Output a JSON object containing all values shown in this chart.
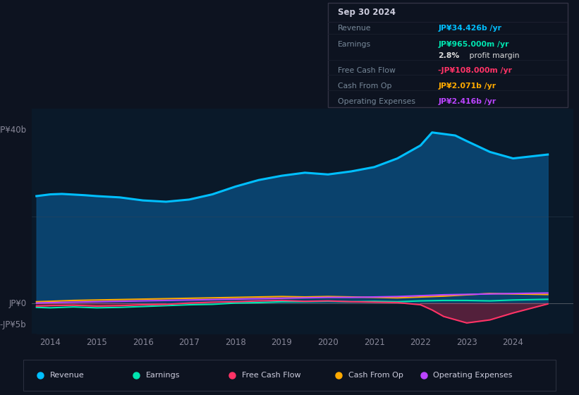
{
  "bg_color": "#0d1320",
  "plot_bg_color": "#0a1929",
  "title": "Sep 30 2024",
  "y_label_top": "JP¥40b",
  "y_label_zero": "JP¥0",
  "y_label_neg": "-JP¥5b",
  "x_ticks": [
    2014,
    2015,
    2016,
    2017,
    2018,
    2019,
    2020,
    2021,
    2022,
    2023,
    2024
  ],
  "ylim": [
    -7.0,
    45.0
  ],
  "xlim": [
    2013.6,
    2025.3
  ],
  "revenue_x": [
    2013.7,
    2014.0,
    2014.25,
    2014.75,
    2015.0,
    2015.5,
    2016.0,
    2016.5,
    2017.0,
    2017.5,
    2018.0,
    2018.5,
    2019.0,
    2019.5,
    2020.0,
    2020.5,
    2021.0,
    2021.5,
    2022.0,
    2022.25,
    2022.75,
    2023.0,
    2023.5,
    2024.0,
    2024.75
  ],
  "revenue_y": [
    24.8,
    25.2,
    25.3,
    25.0,
    24.8,
    24.5,
    23.8,
    23.5,
    24.0,
    25.2,
    27.0,
    28.5,
    29.5,
    30.2,
    29.8,
    30.5,
    31.5,
    33.5,
    36.5,
    39.5,
    38.8,
    37.5,
    35.0,
    33.5,
    34.4
  ],
  "earnings_x": [
    2013.7,
    2014.0,
    2014.5,
    2015.0,
    2015.5,
    2016.0,
    2016.5,
    2017.0,
    2017.5,
    2018.0,
    2018.5,
    2019.0,
    2019.5,
    2020.0,
    2020.5,
    2021.0,
    2021.5,
    2022.0,
    2022.5,
    2023.0,
    2023.5,
    2024.0,
    2024.75
  ],
  "earnings_y": [
    -0.9,
    -1.0,
    -0.8,
    -1.0,
    -0.9,
    -0.7,
    -0.5,
    -0.3,
    -0.2,
    0.1,
    0.2,
    0.4,
    0.4,
    0.5,
    0.4,
    0.5,
    0.4,
    0.6,
    0.7,
    0.7,
    0.6,
    0.8,
    0.965
  ],
  "fcf_x": [
    2013.7,
    2014.0,
    2014.5,
    2015.0,
    2015.5,
    2016.0,
    2016.5,
    2017.0,
    2017.5,
    2018.0,
    2018.5,
    2019.0,
    2019.5,
    2020.0,
    2020.5,
    2021.0,
    2021.5,
    2022.0,
    2022.25,
    2022.5,
    2023.0,
    2023.5,
    2024.0,
    2024.75
  ],
  "fcf_y": [
    -0.6,
    -0.5,
    -0.4,
    -0.6,
    -0.5,
    -0.3,
    -0.2,
    0.1,
    0.3,
    0.4,
    0.6,
    0.7,
    0.5,
    0.6,
    0.4,
    0.3,
    0.2,
    -0.3,
    -1.5,
    -3.0,
    -4.5,
    -3.8,
    -2.2,
    -0.108
  ],
  "cashop_x": [
    2013.7,
    2014.0,
    2014.5,
    2015.0,
    2015.5,
    2016.0,
    2016.5,
    2017.0,
    2017.5,
    2018.0,
    2018.5,
    2019.0,
    2019.5,
    2020.0,
    2020.5,
    2021.0,
    2021.5,
    2022.0,
    2022.5,
    2023.0,
    2023.5,
    2024.0,
    2024.75
  ],
  "cashop_y": [
    0.4,
    0.5,
    0.7,
    0.8,
    0.9,
    1.0,
    1.1,
    1.2,
    1.3,
    1.4,
    1.5,
    1.6,
    1.5,
    1.6,
    1.5,
    1.4,
    1.3,
    1.5,
    1.7,
    2.0,
    2.3,
    2.2,
    2.071
  ],
  "opex_x": [
    2013.7,
    2014.0,
    2014.5,
    2015.0,
    2015.5,
    2016.0,
    2016.5,
    2017.0,
    2017.5,
    2018.0,
    2018.5,
    2019.0,
    2019.5,
    2020.0,
    2020.5,
    2021.0,
    2021.5,
    2022.0,
    2022.5,
    2023.0,
    2023.5,
    2024.0,
    2024.75
  ],
  "opex_y": [
    0.1,
    0.2,
    0.3,
    0.4,
    0.5,
    0.6,
    0.7,
    0.8,
    0.9,
    1.0,
    1.1,
    1.2,
    1.3,
    1.4,
    1.4,
    1.5,
    1.6,
    1.8,
    2.0,
    2.1,
    2.2,
    2.3,
    2.416
  ],
  "revenue_color": "#00bfff",
  "earnings_color": "#00e5b0",
  "fcf_color": "#ff3366",
  "cashop_color": "#ffaa00",
  "opex_color": "#bb44ff",
  "legend": [
    {
      "label": "Revenue",
      "color": "#00bfff"
    },
    {
      "label": "Earnings",
      "color": "#00e5b0"
    },
    {
      "label": "Free Cash Flow",
      "color": "#ff3366"
    },
    {
      "label": "Cash From Op",
      "color": "#ffaa00"
    },
    {
      "label": "Operating Expenses",
      "color": "#bb44ff"
    }
  ]
}
